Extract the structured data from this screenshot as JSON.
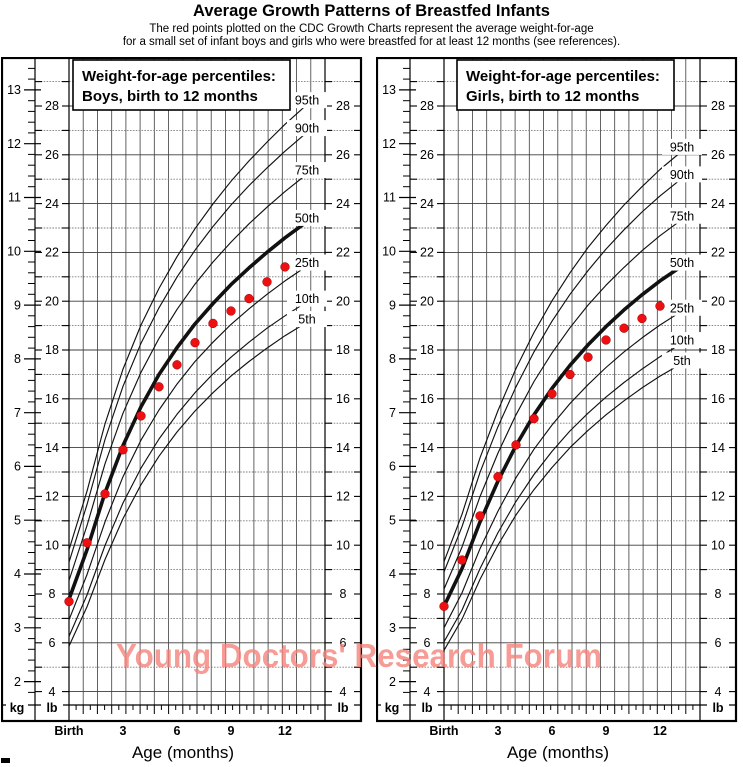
{
  "header": {
    "title": "Average Growth Patterns of Breastfed Infants",
    "subtitle_line1": "The red points plotted on the CDC Growth Charts represent the average weight-for-age",
    "subtitle_line2": "for a small set of infant boys and girls who were breastfed for at least 12 months (see references)."
  },
  "watermark": {
    "text": "Young Doctors' Research Forum",
    "color": "#f5837b"
  },
  "chart_data": [
    {
      "type": "scatter",
      "title_line1": "Weight-for-age percentiles:",
      "title_line2": "Boys, birth to 12 months",
      "xlabel": "Age (months)",
      "x_ticks": [
        {
          "month": 0,
          "label": "Birth"
        },
        {
          "month": 3,
          "label": "3"
        },
        {
          "month": 6,
          "label": "6"
        },
        {
          "month": 9,
          "label": "9"
        },
        {
          "month": 12,
          "label": "12"
        }
      ],
      "unit_left": "kg",
      "unit_inner": "lb",
      "kg_axis_labels": [
        2,
        3,
        4,
        5,
        6,
        7,
        8,
        9,
        10,
        11,
        12,
        13
      ],
      "lb_axis_labels": [
        4,
        6,
        8,
        10,
        12,
        14,
        16,
        18,
        20,
        22,
        24,
        26,
        28
      ],
      "kg_range": [
        2,
        13
      ],
      "lb_range": [
        4,
        28
      ],
      "curve_months": [
        0,
        1,
        2,
        3,
        4,
        5,
        6,
        7,
        8,
        9,
        10,
        11,
        12,
        13.5
      ],
      "percentiles": [
        {
          "name": "95th",
          "bold": false,
          "kg": [
            4.45,
            5.54,
            6.79,
            7.81,
            8.63,
            9.31,
            9.9,
            10.42,
            10.88,
            11.3,
            11.68,
            12.03,
            12.36,
            12.81
          ]
        },
        {
          "name": "90th",
          "bold": false,
          "kg": [
            4.22,
            5.29,
            6.5,
            7.49,
            8.29,
            8.95,
            9.52,
            10.02,
            10.46,
            10.86,
            11.22,
            11.55,
            11.86,
            12.29
          ]
        },
        {
          "name": "75th",
          "bold": false,
          "kg": [
            3.88,
            4.9,
            6.05,
            6.99,
            7.75,
            8.38,
            8.92,
            9.39,
            9.8,
            10.17,
            10.51,
            10.82,
            11.11,
            11.51
          ]
        },
        {
          "name": "50th",
          "bold": true,
          "kg": [
            3.53,
            4.45,
            5.51,
            6.39,
            7.11,
            7.71,
            8.21,
            8.65,
            9.03,
            9.38,
            9.69,
            9.98,
            10.25,
            10.62
          ]
        },
        {
          "name": "25th",
          "bold": false,
          "kg": [
            3.15,
            3.99,
            4.97,
            5.81,
            6.49,
            7.05,
            7.53,
            7.95,
            8.31,
            8.64,
            8.93,
            9.2,
            9.45,
            9.79
          ]
        },
        {
          "name": "10th",
          "bold": false,
          "kg": [
            2.84,
            3.61,
            4.53,
            5.32,
            5.97,
            6.51,
            6.97,
            7.37,
            7.72,
            8.03,
            8.31,
            8.57,
            8.8,
            9.12
          ]
        },
        {
          "name": "5th",
          "bold": false,
          "kg": [
            2.66,
            3.39,
            4.27,
            5.03,
            5.66,
            6.19,
            6.64,
            7.03,
            7.37,
            7.68,
            7.95,
            8.2,
            8.43,
            8.74
          ]
        }
      ],
      "points": {
        "months": [
          0,
          1,
          2,
          3,
          4,
          5,
          6,
          7,
          8,
          9,
          10,
          11,
          12
        ],
        "kg": [
          3.49,
          4.58,
          5.49,
          6.31,
          6.94,
          7.48,
          7.89,
          8.3,
          8.66,
          8.89,
          9.12,
          9.43,
          9.71
        ],
        "color": "#ee1010"
      },
      "title_box_x": 72
    },
    {
      "type": "scatter",
      "title_line1": "Weight-for-age percentiles:",
      "title_line2": "Girls, birth to 12 months",
      "xlabel": "Age (months)",
      "x_ticks": [
        {
          "month": 0,
          "label": "Birth"
        },
        {
          "month": 3,
          "label": "3"
        },
        {
          "month": 6,
          "label": "6"
        },
        {
          "month": 9,
          "label": "9"
        },
        {
          "month": 12,
          "label": "12"
        }
      ],
      "unit_left": "kg",
      "unit_inner": "lb",
      "kg_axis_labels": [
        2,
        3,
        4,
        5,
        6,
        7,
        8,
        9,
        10,
        11,
        12,
        13
      ],
      "lb_axis_labels": [
        4,
        6,
        8,
        10,
        12,
        14,
        16,
        18,
        20,
        22,
        24,
        26,
        28
      ],
      "kg_range": [
        2,
        13
      ],
      "lb_range": [
        4,
        28
      ],
      "curve_months": [
        0,
        1,
        2,
        3,
        4,
        5,
        6,
        7,
        8,
        9,
        10,
        11,
        12,
        13.5
      ],
      "percentiles": [
        {
          "name": "95th",
          "bold": false,
          "kg": [
            4.23,
            5.11,
            6.16,
            7.04,
            7.82,
            8.49,
            9.08,
            9.6,
            10.07,
            10.48,
            10.86,
            11.2,
            11.52,
            11.94
          ]
        },
        {
          "name": "90th",
          "bold": false,
          "kg": [
            4.04,
            4.88,
            5.89,
            6.74,
            7.48,
            8.13,
            8.7,
            9.2,
            9.64,
            10.04,
            10.4,
            10.73,
            11.03,
            11.43
          ]
        },
        {
          "name": "75th",
          "bold": false,
          "kg": [
            3.72,
            4.5,
            5.44,
            6.25,
            6.96,
            7.58,
            8.11,
            8.58,
            9.0,
            9.37,
            9.7,
            10.01,
            10.29,
            10.66
          ]
        },
        {
          "name": "50th",
          "bold": true,
          "kg": [
            3.4,
            4.1,
            4.97,
            5.73,
            6.39,
            6.96,
            7.45,
            7.88,
            8.26,
            8.6,
            8.91,
            9.19,
            9.45,
            9.79
          ]
        },
        {
          "name": "25th",
          "bold": false,
          "kg": [
            3.0,
            3.65,
            4.47,
            5.17,
            5.79,
            6.32,
            6.77,
            7.17,
            7.52,
            7.84,
            8.13,
            8.39,
            8.63,
            8.95
          ]
        },
        {
          "name": "10th",
          "bold": false,
          "kg": [
            2.74,
            3.33,
            4.1,
            4.77,
            5.35,
            5.85,
            6.28,
            6.66,
            6.99,
            7.29,
            7.56,
            7.81,
            8.04,
            8.35
          ]
        },
        {
          "name": "5th",
          "bold": false,
          "kg": [
            2.58,
            3.16,
            3.9,
            4.54,
            5.1,
            5.57,
            5.98,
            6.35,
            6.67,
            6.96,
            7.22,
            7.46,
            7.68,
            7.97
          ]
        }
      ],
      "points": {
        "months": [
          0,
          1,
          2,
          3,
          4,
          5,
          6,
          7,
          8,
          9,
          10,
          11,
          12
        ],
        "kg": [
          3.4,
          4.26,
          5.08,
          5.81,
          6.4,
          6.89,
          7.35,
          7.71,
          8.03,
          8.35,
          8.57,
          8.75,
          8.98
        ],
        "color": "#ee1010"
      },
      "title_box_x": 81
    }
  ]
}
